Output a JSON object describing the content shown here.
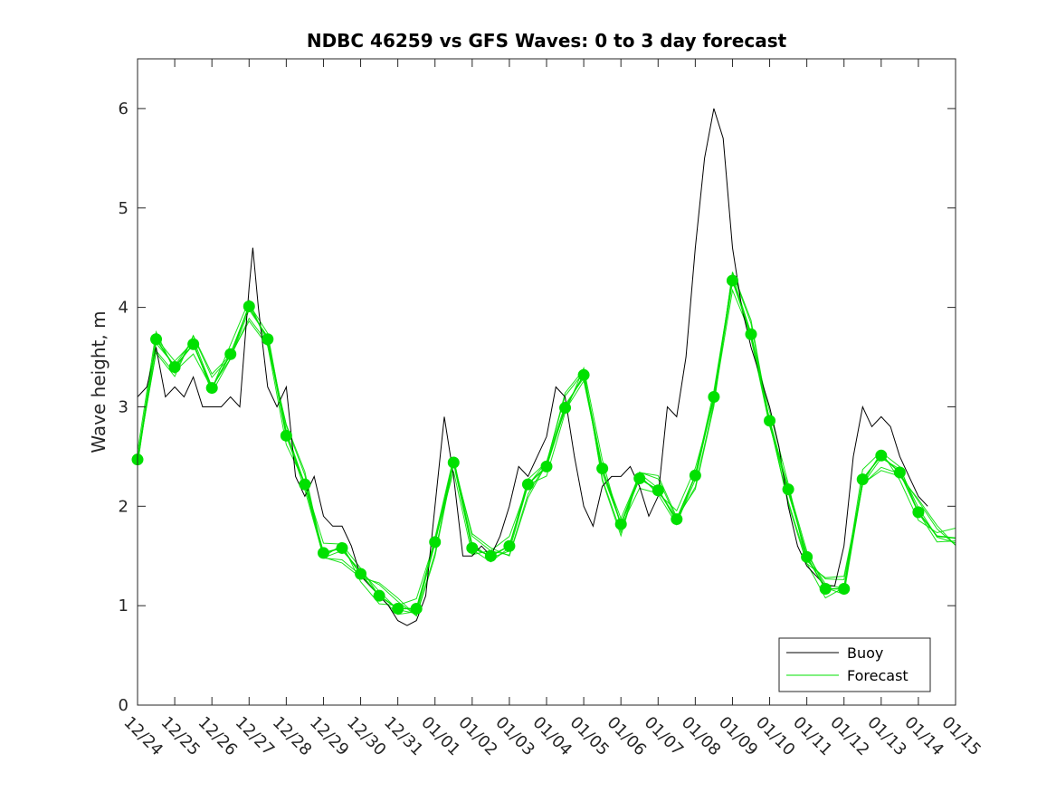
{
  "chart_data": {
    "type": "line",
    "title": "NDBC 46259 vs GFS Waves: 0 to 3 day forecast",
    "xlabel": "",
    "ylabel": "Wave height, m",
    "ylim": [
      0,
      6.5
    ],
    "xlim": [
      0,
      22
    ],
    "yticks": [
      0,
      1,
      2,
      3,
      4,
      5,
      6
    ],
    "ytick_labels": [
      "0",
      "1",
      "2",
      "3",
      "4",
      "5",
      "6"
    ],
    "xticks": [
      0,
      1,
      2,
      3,
      4,
      5,
      6,
      7,
      8,
      9,
      10,
      11,
      12,
      13,
      14,
      15,
      16,
      17,
      18,
      19,
      20,
      21,
      22
    ],
    "xtick_labels": [
      "12/24",
      "12/25",
      "12/26",
      "12/27",
      "12/28",
      "12/29",
      "12/30",
      "12/31",
      "01/01",
      "01/02",
      "01/03",
      "01/04",
      "01/05",
      "01/06",
      "01/07",
      "01/08",
      "01/09",
      "01/10",
      "01/11",
      "01/12",
      "01/13",
      "01/14",
      "01/15"
    ],
    "legend": {
      "position": "bottom-right",
      "entries": [
        {
          "name": "Buoy",
          "color": "#000000"
        },
        {
          "name": "Forecast",
          "color": "#00e000"
        }
      ]
    },
    "series": [
      {
        "name": "Buoy",
        "color": "#000000",
        "x": [
          0,
          0.25,
          0.5,
          0.75,
          1,
          1.25,
          1.5,
          1.75,
          2,
          2.25,
          2.5,
          2.75,
          3,
          3.1,
          3.25,
          3.5,
          3.75,
          4,
          4.25,
          4.5,
          4.75,
          5,
          5.25,
          5.5,
          5.75,
          6,
          6.25,
          6.5,
          6.75,
          7,
          7.25,
          7.5,
          7.75,
          8,
          8.25,
          8.5,
          8.75,
          9,
          9.25,
          9.5,
          9.75,
          10,
          10.25,
          10.5,
          10.75,
          11,
          11.25,
          11.5,
          11.75,
          12,
          12.25,
          12.5,
          12.75,
          13,
          13.25,
          13.5,
          13.75,
          14,
          14.25,
          14.5,
          14.75,
          15,
          15.25,
          15.5,
          15.75,
          16,
          16.25,
          16.5,
          16.75,
          17,
          17.25,
          17.5,
          17.75,
          18,
          18.25,
          18.5,
          18.75,
          19,
          19.25,
          19.5,
          19.75,
          20,
          20.25,
          20.5,
          20.75,
          21,
          21.25
        ],
        "values": [
          3.1,
          3.2,
          3.6,
          3.1,
          3.2,
          3.1,
          3.3,
          3.0,
          3.0,
          3.0,
          3.1,
          3.0,
          4.2,
          4.6,
          4.0,
          3.2,
          3.0,
          3.2,
          2.3,
          2.1,
          2.3,
          1.9,
          1.8,
          1.8,
          1.6,
          1.3,
          1.2,
          1.1,
          1.0,
          0.85,
          0.8,
          0.85,
          1.1,
          2.0,
          2.9,
          2.3,
          1.5,
          1.5,
          1.6,
          1.5,
          1.7,
          2.0,
          2.4,
          2.3,
          2.5,
          2.7,
          3.2,
          3.1,
          2.5,
          2.0,
          1.8,
          2.2,
          2.3,
          2.3,
          2.4,
          2.2,
          1.9,
          2.1,
          3.0,
          2.9,
          3.5,
          4.6,
          5.5,
          6.0,
          5.7,
          4.6,
          4.0,
          3.6,
          3.3,
          3.0,
          2.6,
          2.0,
          1.6,
          1.4,
          1.3,
          1.2,
          1.2,
          1.6,
          2.5,
          3.0,
          2.8,
          2.9,
          2.8,
          2.5,
          2.3,
          2.1,
          2.0
        ]
      },
      {
        "name": "Forecast",
        "color": "#00e000",
        "x": [
          0,
          0.5,
          1,
          1.5,
          2,
          2.5,
          3,
          3.5,
          4,
          4.5,
          5,
          5.5,
          6,
          6.5,
          7,
          7.5,
          8,
          8.5,
          9,
          9.5,
          10,
          10.5,
          11,
          11.5,
          12,
          12.5,
          13,
          13.5,
          14,
          14.5,
          15,
          15.5,
          16,
          16.5,
          17,
          17.5,
          18,
          18.5,
          19,
          19.5,
          20,
          20.5,
          21,
          21.5,
          22
        ],
        "values": [
          2.47,
          3.68,
          3.4,
          3.63,
          3.19,
          3.53,
          4.01,
          3.68,
          2.71,
          2.22,
          1.53,
          1.58,
          1.32,
          1.1,
          0.97,
          0.97,
          1.64,
          2.44,
          1.58,
          1.5,
          1.6,
          2.22,
          2.4,
          2.99,
          3.32,
          2.38,
          1.82,
          2.28,
          2.16,
          1.87,
          2.31,
          3.1,
          4.27,
          3.73,
          2.86,
          2.17,
          1.49,
          1.17,
          1.17,
          2.27,
          2.51,
          2.34,
          1.94,
          1.7,
          1.68
        ]
      }
    ],
    "forecast_markers": {
      "x": [
        0,
        0.5,
        1,
        1.5,
        2,
        2.5,
        3,
        3.5,
        4,
        4.5,
        5,
        5.5,
        6,
        6.5,
        7,
        7.5,
        8,
        8.5,
        9,
        9.5,
        10,
        10.5,
        11,
        11.5,
        12,
        12.5,
        13,
        13.5,
        14,
        14.5,
        15,
        15.5,
        16,
        16.5,
        17,
        17.5,
        18,
        18.5,
        19,
        19.5,
        20,
        20.5,
        21
      ],
      "values": [
        2.47,
        3.68,
        3.4,
        3.63,
        3.19,
        3.53,
        4.01,
        3.68,
        2.71,
        2.22,
        1.53,
        1.58,
        1.32,
        1.1,
        0.97,
        0.97,
        1.64,
        2.44,
        1.58,
        1.5,
        1.6,
        2.22,
        2.4,
        2.99,
        3.32,
        2.38,
        1.82,
        2.28,
        2.16,
        1.87,
        2.31,
        3.1,
        4.27,
        3.73,
        2.86,
        2.17,
        1.49,
        1.17,
        1.17,
        2.27,
        2.51,
        2.34,
        1.94
      ]
    }
  }
}
